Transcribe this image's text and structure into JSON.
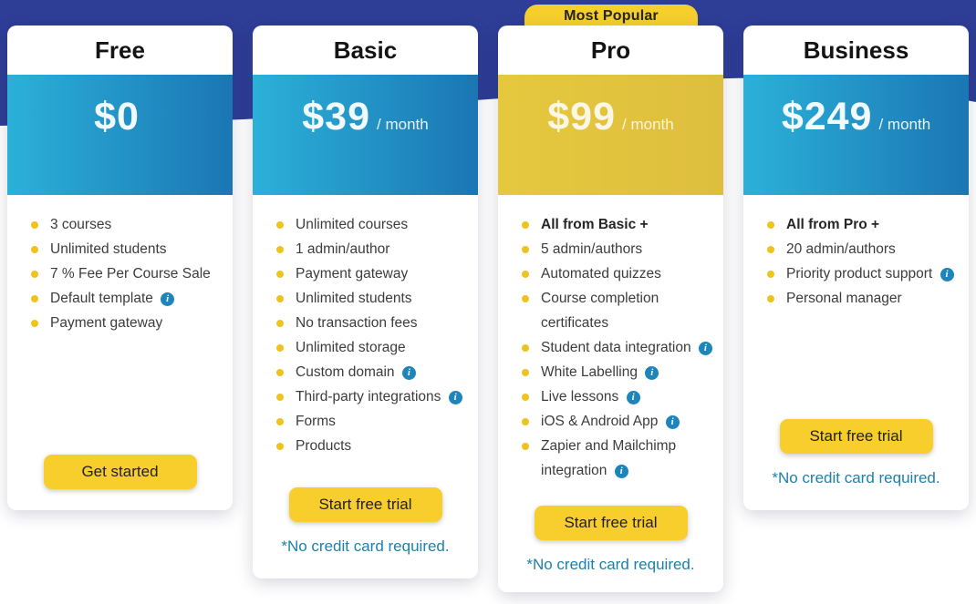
{
  "badge": {
    "label": "Most Popular"
  },
  "colors": {
    "hero_navy": "#2E3D96",
    "accent_yellow": "#F7CE2B",
    "badge_yellow": "#F6CF2D",
    "band_blue_left": "#2BB1D9",
    "band_blue_right": "#1B76B3",
    "band_gold": "#E3C440",
    "bullet_yellow": "#EFC31D",
    "info_icon_blue": "#1E85BB",
    "note_teal": "#1D81A8"
  },
  "plans": [
    {
      "name": "Free",
      "price": "$0",
      "period": "",
      "band": "blue",
      "features": [
        {
          "text": "3 courses"
        },
        {
          "text": "Unlimited students"
        },
        {
          "text": "7 % Fee Per Course Sale"
        },
        {
          "text": "Default template",
          "info": true
        },
        {
          "text": "Payment gateway"
        }
      ],
      "cta": "Get started",
      "note": ""
    },
    {
      "name": "Basic",
      "price": "$39",
      "period": "/ month",
      "band": "blue",
      "features": [
        {
          "text": "Unlimited courses"
        },
        {
          "text": "1 admin/author"
        },
        {
          "text": "Payment gateway"
        },
        {
          "text": "Unlimited students"
        },
        {
          "text": "No transaction fees"
        },
        {
          "text": "Unlimited storage"
        },
        {
          "text": "Custom domain",
          "info": true
        },
        {
          "text": "Third-party integrations",
          "info": true
        },
        {
          "text": "Forms"
        },
        {
          "text": "Products"
        }
      ],
      "cta": "Start free trial",
      "note": "*No credit card required."
    },
    {
      "name": "Pro",
      "price": "$99",
      "period": "/ month",
      "band": "gold",
      "most_popular": true,
      "features": [
        {
          "text": "All from Basic +",
          "bold": true
        },
        {
          "text": "5 admin/authors"
        },
        {
          "text": "Automated quizzes"
        },
        {
          "text": "Course completion certificates"
        },
        {
          "text": "Student data integration",
          "info": true
        },
        {
          "text": "White Labelling",
          "info": true
        },
        {
          "text": "Live lessons",
          "info": true
        },
        {
          "text": "iOS & Android App",
          "info": true
        },
        {
          "text": "Zapier and Mailchimp integration",
          "info": true
        }
      ],
      "cta": "Start free trial",
      "note": "*No credit card required."
    },
    {
      "name": "Business",
      "price": "$249",
      "period": "/ month",
      "band": "blue",
      "features": [
        {
          "text": "All from Pro +",
          "bold": true
        },
        {
          "text": "20 admin/authors"
        },
        {
          "text": "Priority product support",
          "info": true
        },
        {
          "text": "Personal manager"
        }
      ],
      "cta": "Start free trial",
      "note": "*No credit card required."
    }
  ]
}
